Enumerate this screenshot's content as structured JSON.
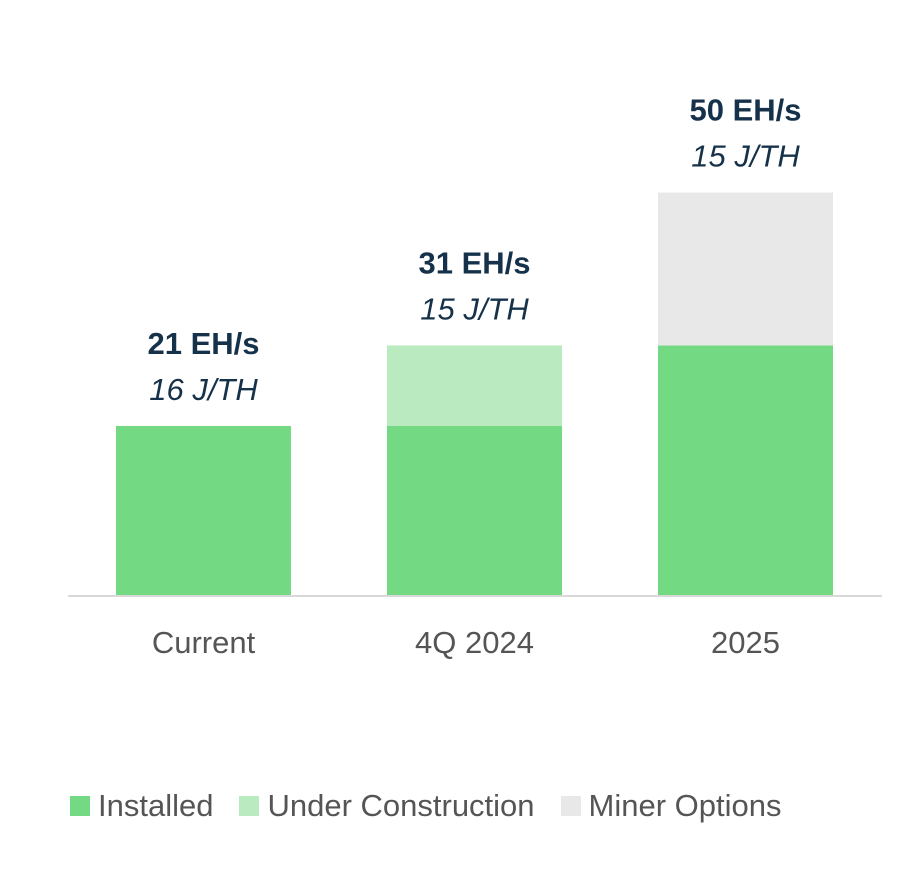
{
  "chart_data": {
    "type": "bar",
    "stacked": true,
    "categories": [
      "Current",
      "4Q 2024",
      "2025"
    ],
    "series": [
      {
        "name": "Installed",
        "color": "#73d982",
        "values": [
          21,
          21,
          31
        ]
      },
      {
        "name": "Under Construction",
        "color": "#b9eac0",
        "values": [
          0,
          10,
          0
        ]
      },
      {
        "name": "Miner Options",
        "color": "#e8e8e8",
        "values": [
          0,
          0,
          19
        ]
      }
    ],
    "totals": [
      "21 EH/s",
      "31 EH/s",
      "50 EH/s"
    ],
    "efficiency": [
      "16 J/TH",
      "15 J/TH",
      "15 J/TH"
    ],
    "ylim": [
      0,
      50
    ],
    "grid": false,
    "legend": "bottom",
    "colors": {
      "total_label": "#16324a",
      "efficiency_label": "#16324a",
      "axis_text": "#555555",
      "axis_line": "#d9d9d9"
    }
  }
}
